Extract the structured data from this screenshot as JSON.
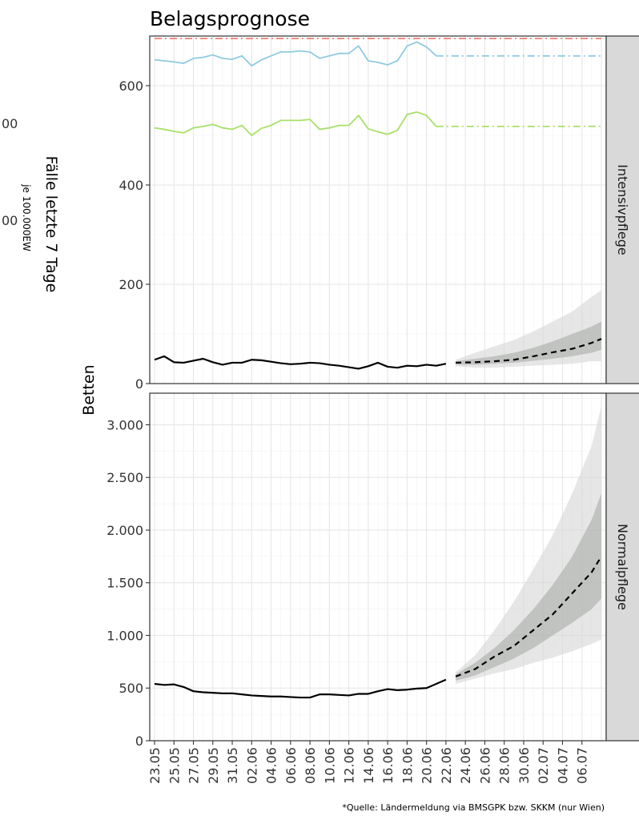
{
  "chart_data": {
    "type": "line",
    "title": "Belagsprognose",
    "ylabel": "Betten",
    "caption": "*Quelle: Ländermeldung via BMSGPK bzw. SKKM (nur Wien)",
    "x_tick_labels": [
      "23.05",
      "25.05",
      "27.05",
      "29.05",
      "31.05",
      "02.06",
      "04.06",
      "06.06",
      "08.06",
      "10.06",
      "12.06",
      "14.06",
      "16.06",
      "18.06",
      "20.06",
      "22.06",
      "24.06",
      "26.06",
      "28.06",
      "30.06",
      "02.07",
      "04.07",
      "06.07"
    ],
    "x_range_days": [
      0,
      46
    ],
    "grid": true,
    "background_partial_labels": {
      "lines": [
        "Fälle",
        "letzte",
        "7 Tage"
      ],
      "sub": "je 100.000EW",
      "ticks": [
        "00",
        "00"
      ]
    },
    "panels": [
      {
        "strip": "Intensivpflege",
        "ylim": [
          0,
          700
        ],
        "y_ticks": [
          0,
          200,
          400,
          600
        ],
        "y_tick_labels": [
          "0",
          "200",
          "400",
          "600"
        ],
        "series": [
          {
            "role": "capacity_red",
            "color": "#f08070",
            "style": "dashdot",
            "x": [
              0,
              46
            ],
            "values": [
              695,
              695
            ]
          },
          {
            "role": "capacity_blue",
            "color": "#8fcbe0",
            "style": "solid",
            "x": [
              0,
              1,
              2,
              3,
              4,
              5,
              6,
              7,
              8,
              9,
              10,
              11,
              12,
              13,
              14,
              15,
              16,
              17,
              18,
              19,
              20,
              21,
              22,
              23,
              24,
              25,
              26,
              27,
              28,
              29
            ],
            "values": [
              652,
              650,
              648,
              645,
              655,
              657,
              662,
              655,
              653,
              660,
              640,
              652,
              660,
              668,
              668,
              670,
              668,
              655,
              660,
              665,
              665,
              680,
              650,
              647,
              642,
              650,
              680,
              688,
              678,
              660
            ]
          },
          {
            "role": "capacity_blue_projection",
            "color": "#8fcbe0",
            "style": "dashdot",
            "x": [
              29,
              46
            ],
            "values": [
              660,
              660
            ]
          },
          {
            "role": "capacity_green",
            "color": "#a8e06a",
            "style": "solid",
            "x": [
              0,
              1,
              2,
              3,
              4,
              5,
              6,
              7,
              8,
              9,
              10,
              11,
              12,
              13,
              14,
              15,
              16,
              17,
              18,
              19,
              20,
              21,
              22,
              23,
              24,
              25,
              26,
              27,
              28,
              29
            ],
            "values": [
              515,
              512,
              508,
              505,
              515,
              518,
              522,
              515,
              512,
              520,
              500,
              514,
              520,
              530,
              530,
              530,
              532,
              512,
              515,
              520,
              520,
              540,
              513,
              507,
              502,
              510,
              542,
              547,
              540,
              518
            ]
          },
          {
            "role": "capacity_green_projection",
            "color": "#a8e06a",
            "style": "dashdot",
            "x": [
              29,
              46
            ],
            "values": [
              518,
              518
            ]
          },
          {
            "role": "occupancy",
            "color": "#000000",
            "style": "solid",
            "x": [
              0,
              1,
              2,
              3,
              4,
              5,
              6,
              7,
              8,
              9,
              10,
              11,
              12,
              13,
              14,
              15,
              16,
              17,
              18,
              19,
              20,
              21,
              22,
              23,
              24,
              25,
              26,
              27,
              28,
              29,
              30
            ],
            "values": [
              48,
              55,
              43,
              42,
              46,
              50,
              43,
              38,
              42,
              42,
              48,
              47,
              44,
              41,
              39,
              40,
              42,
              41,
              38,
              36,
              33,
              30,
              35,
              42,
              34,
              32,
              36,
              35,
              38,
              36,
              40
            ]
          },
          {
            "role": "forecast",
            "color": "#000000",
            "style": "dashed",
            "x": [
              31,
              33,
              35,
              37,
              39,
              41,
              43,
              45,
              46
            ],
            "values": [
              42,
              43,
              45,
              48,
              55,
              63,
              70,
              82,
              90
            ]
          }
        ],
        "bands": [
          {
            "level": "outer",
            "color": "#d9d9d9",
            "x": [
              31,
              33,
              35,
              37,
              39,
              41,
              43,
              45,
              46
            ],
            "lower": [
              35,
              32,
              32,
              34,
              36,
              38,
              40,
              45,
              45
            ],
            "upper": [
              48,
              62,
              75,
              88,
              105,
              125,
              145,
              175,
              188
            ]
          },
          {
            "level": "inner",
            "color": "#a9aba9",
            "x": [
              31,
              33,
              35,
              37,
              39,
              41,
              43,
              45,
              46
            ],
            "lower": [
              38,
              38,
              40,
              42,
              46,
              50,
              55,
              62,
              68
            ],
            "upper": [
              45,
              50,
              55,
              62,
              72,
              85,
              100,
              115,
              125
            ]
          }
        ]
      },
      {
        "strip": "Normalpflege",
        "ylim": [
          0,
          3300
        ],
        "y_ticks": [
          0,
          500,
          1000,
          1500,
          2000,
          2500,
          3000
        ],
        "y_tick_labels": [
          "0",
          "500",
          "1.000",
          "1.500",
          "2.000",
          "2.500",
          "3.000"
        ],
        "series": [
          {
            "role": "occupancy",
            "color": "#000000",
            "style": "solid",
            "x": [
              0,
              1,
              2,
              3,
              4,
              5,
              6,
              7,
              8,
              9,
              10,
              11,
              12,
              13,
              14,
              15,
              16,
              17,
              18,
              19,
              20,
              21,
              22,
              23,
              24,
              25,
              26,
              27,
              28,
              29,
              30
            ],
            "values": [
              540,
              530,
              535,
              510,
              470,
              460,
              455,
              450,
              450,
              440,
              430,
              425,
              420,
              420,
              415,
              410,
              410,
              440,
              440,
              435,
              430,
              445,
              445,
              470,
              490,
              480,
              485,
              495,
              500,
              540,
              580
            ]
          },
          {
            "role": "forecast",
            "color": "#000000",
            "style": "dashed",
            "x": [
              31,
              33,
              35,
              37,
              39,
              41,
              43,
              45,
              46
            ],
            "values": [
              610,
              680,
              800,
              900,
              1050,
              1200,
              1400,
              1600,
              1750
            ]
          }
        ],
        "bands": [
          {
            "level": "outer",
            "color": "#d9d9d9",
            "x": [
              31,
              33,
              35,
              37,
              39,
              41,
              43,
              45,
              46
            ],
            "lower": [
              540,
              590,
              640,
              680,
              740,
              790,
              850,
              920,
              960
            ],
            "upper": [
              650,
              810,
              1050,
              1320,
              1630,
              1950,
              2350,
              2800,
              3180
            ]
          },
          {
            "level": "inner",
            "color": "#a9aba9",
            "x": [
              31,
              33,
              35,
              37,
              39,
              41,
              43,
              45,
              46
            ],
            "lower": [
              570,
              620,
              700,
              780,
              880,
              1000,
              1120,
              1250,
              1350
            ],
            "upper": [
              630,
              740,
              880,
              1050,
              1250,
              1480,
              1750,
              2100,
              2350
            ]
          }
        ]
      }
    ]
  }
}
